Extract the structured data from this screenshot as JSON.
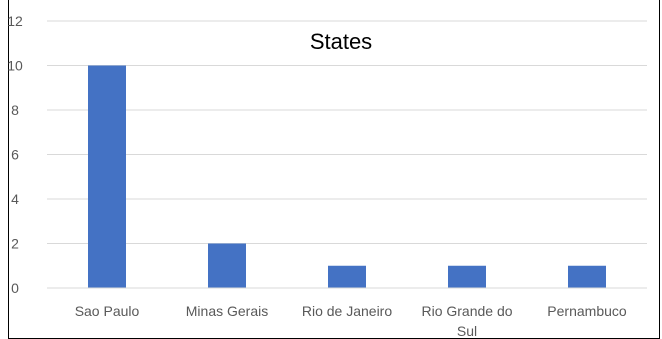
{
  "chart_data": {
    "type": "bar",
    "title": "States",
    "categories": [
      "Sao Paulo",
      "Minas Gerais",
      "Rio de Janeiro",
      "Rio Grande do Sul",
      "Pernambuco"
    ],
    "category_lines": [
      [
        "Sao Paulo"
      ],
      [
        "Minas Gerais"
      ],
      [
        "Rio de Janeiro"
      ],
      [
        "Rio Grande do",
        "Sul"
      ],
      [
        "Pernambuco"
      ]
    ],
    "values": [
      10,
      2,
      1,
      1,
      1
    ],
    "ylim": [
      0,
      12
    ],
    "yticks": [
      0,
      2,
      4,
      6,
      8,
      10,
      12
    ],
    "xlabel": "",
    "ylabel": "",
    "grid": true,
    "legend": "none",
    "bar_color": "#4472C4",
    "grid_color": "#D9D9D9"
  }
}
